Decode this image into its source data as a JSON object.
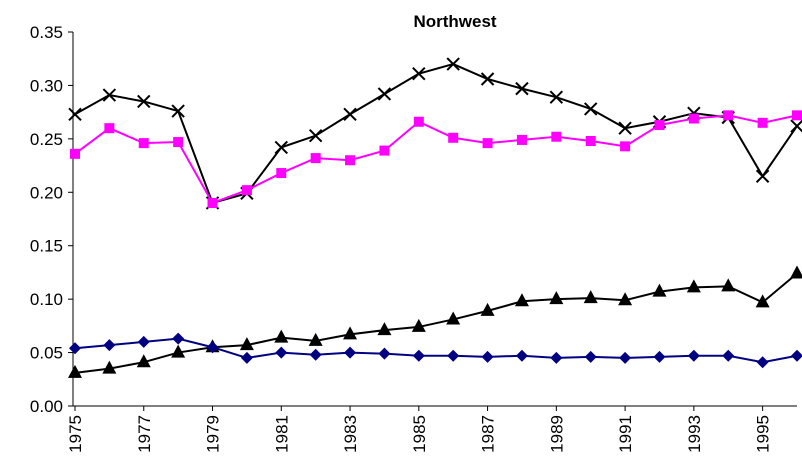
{
  "chart_data": {
    "type": "line",
    "title": "Northwest",
    "x": [
      1975,
      1976,
      1977,
      1978,
      1979,
      1980,
      1981,
      1982,
      1983,
      1984,
      1985,
      1986,
      1987,
      1988,
      1989,
      1990,
      1991,
      1992,
      1993,
      1994,
      1995,
      1996
    ],
    "xlim": [
      1975,
      1996
    ],
    "xticks": [
      1975,
      1977,
      1979,
      1981,
      1983,
      1985,
      1987,
      1989,
      1991,
      1993,
      1995
    ],
    "ylim": [
      0,
      0.35
    ],
    "yticks": [
      {
        "value": 0,
        "label": "0.00"
      },
      0.05,
      {
        "value": 0.1,
        "label": "0.10"
      },
      0.15,
      {
        "value": 0.2,
        "label": "0.20"
      },
      0.25,
      {
        "value": 0.3,
        "label": "0.30"
      },
      0.35
    ],
    "series": [
      {
        "color": "#000000",
        "marker": "x",
        "values": [
          0.273,
          0.291,
          0.285,
          0.276,
          0.19,
          0.199,
          0.242,
          0.253,
          0.273,
          0.292,
          0.311,
          0.32,
          0.306,
          0.297,
          0.289,
          0.278,
          0.26,
          0.266,
          0.274,
          0.27,
          0.215,
          0.262
        ]
      },
      {
        "color": "#ff00ff",
        "marker": "square",
        "values": [
          0.236,
          0.26,
          0.246,
          0.247,
          0.19,
          0.202,
          0.218,
          0.232,
          0.23,
          0.239,
          0.266,
          0.251,
          0.246,
          0.249,
          0.252,
          0.248,
          0.243,
          0.263,
          0.269,
          0.272,
          0.265,
          0.272
        ]
      },
      {
        "color": "#000000",
        "marker": "triangle",
        "values": [
          0.031,
          0.035,
          0.041,
          0.05,
          0.055,
          0.057,
          0.064,
          0.061,
          0.067,
          0.071,
          0.074,
          0.081,
          0.089,
          0.098,
          0.1,
          0.101,
          0.099,
          0.107,
          0.111,
          0.112,
          0.097,
          0.124
        ]
      },
      {
        "color": "#000080",
        "marker": "diamond",
        "values": [
          0.054,
          0.057,
          0.06,
          0.063,
          0.055,
          0.045,
          0.05,
          0.048,
          0.05,
          0.049,
          0.047,
          0.047,
          0.046,
          0.047,
          0.045,
          0.046,
          0.045,
          0.046,
          0.047,
          0.047,
          0.041,
          0.047
        ]
      }
    ]
  }
}
